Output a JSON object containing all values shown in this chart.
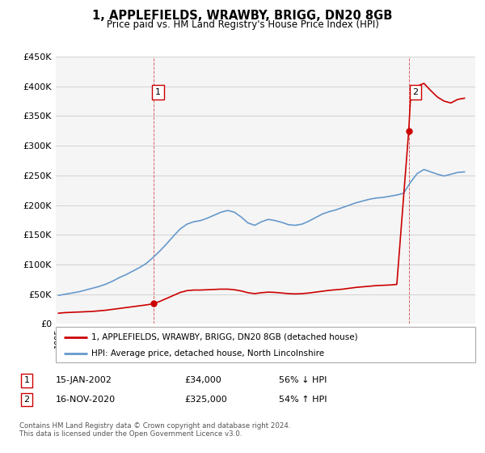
{
  "title": "1, APPLEFIELDS, WRAWBY, BRIGG, DN20 8GB",
  "subtitle": "Price paid vs. HM Land Registry's House Price Index (HPI)",
  "legend_line1": "1, APPLEFIELDS, WRAWBY, BRIGG, DN20 8GB (detached house)",
  "legend_line2": "HPI: Average price, detached house, North Lincolnshire",
  "annotation1_label": "1",
  "annotation1_date": "15-JAN-2002",
  "annotation1_price": "£34,000",
  "annotation1_hpi": "56% ↓ HPI",
  "annotation2_label": "2",
  "annotation2_date": "16-NOV-2020",
  "annotation2_price": "£325,000",
  "annotation2_hpi": "54% ↑ HPI",
  "footnote": "Contains HM Land Registry data © Crown copyright and database right 2024.\nThis data is licensed under the Open Government Licence v3.0.",
  "red_color": "#cc0000",
  "blue_color": "#6699cc",
  "background_color": "#f5f5f5",
  "ylim": [
    0,
    450000
  ],
  "yticks": [
    0,
    50000,
    100000,
    150000,
    200000,
    250000,
    300000,
    350000,
    400000,
    450000
  ],
  "ytick_labels": [
    "£0",
    "£50K",
    "£100K",
    "£150K",
    "£200K",
    "£250K",
    "£300K",
    "£350K",
    "£400K",
    "£450K"
  ],
  "xlim_start": 1994.8,
  "xlim_end": 2025.8,
  "point1_x": 2002.04,
  "point1_y": 34000,
  "point2_x": 2020.88,
  "point2_y": 325000,
  "hpi_years": [
    1995.0,
    1995.5,
    1996.0,
    1996.5,
    1997.0,
    1997.5,
    1998.0,
    1998.5,
    1999.0,
    1999.5,
    2000.0,
    2000.5,
    2001.0,
    2001.5,
    2002.0,
    2002.5,
    2003.0,
    2003.5,
    2004.0,
    2004.5,
    2005.0,
    2005.5,
    2006.0,
    2006.5,
    2007.0,
    2007.5,
    2008.0,
    2008.5,
    2009.0,
    2009.5,
    2010.0,
    2010.5,
    2011.0,
    2011.5,
    2012.0,
    2012.5,
    2013.0,
    2013.5,
    2014.0,
    2014.5,
    2015.0,
    2015.5,
    2016.0,
    2016.5,
    2017.0,
    2017.5,
    2018.0,
    2018.5,
    2019.0,
    2019.5,
    2020.0,
    2020.5,
    2021.0,
    2021.5,
    2022.0,
    2022.5,
    2023.0,
    2023.5,
    2024.0,
    2024.5,
    2025.0
  ],
  "hpi_values": [
    48000,
    50000,
    52000,
    54000,
    57000,
    60000,
    63000,
    67000,
    72000,
    78000,
    83000,
    89000,
    95000,
    102000,
    112000,
    123000,
    135000,
    148000,
    160000,
    168000,
    172000,
    174000,
    178000,
    183000,
    188000,
    191000,
    188000,
    180000,
    170000,
    166000,
    172000,
    176000,
    174000,
    171000,
    167000,
    166000,
    168000,
    173000,
    179000,
    185000,
    189000,
    192000,
    196000,
    200000,
    204000,
    207000,
    210000,
    212000,
    213000,
    215000,
    217000,
    220000,
    238000,
    253000,
    260000,
    256000,
    252000,
    249000,
    252000,
    255000,
    256000
  ],
  "red_years": [
    1995.0,
    1995.5,
    1996.0,
    1996.5,
    1997.0,
    1997.5,
    1998.0,
    1998.5,
    1999.0,
    1999.5,
    2000.0,
    2000.5,
    2001.0,
    2001.5,
    2002.04,
    2002.5,
    2003.0,
    2003.5,
    2004.0,
    2004.5,
    2005.0,
    2005.5,
    2006.0,
    2006.5,
    2007.0,
    2007.5,
    2008.0,
    2008.5,
    2009.0,
    2009.5,
    2010.0,
    2010.5,
    2011.0,
    2011.5,
    2012.0,
    2012.5,
    2013.0,
    2013.5,
    2014.0,
    2014.5,
    2015.0,
    2015.5,
    2016.0,
    2016.5,
    2017.0,
    2017.5,
    2018.0,
    2018.5,
    2019.0,
    2019.5,
    2020.0,
    2020.88,
    2021.0,
    2021.5,
    2022.0,
    2022.5,
    2023.0,
    2023.5,
    2024.0,
    2024.5,
    2025.0
  ],
  "red_values": [
    18000,
    19000,
    19500,
    20000,
    20500,
    21000,
    22000,
    23000,
    24500,
    26000,
    27500,
    29000,
    30500,
    32000,
    34000,
    38000,
    43000,
    48000,
    53000,
    56000,
    57000,
    57000,
    57500,
    58000,
    58500,
    58500,
    57500,
    55500,
    52500,
    51000,
    52500,
    53500,
    53000,
    52000,
    51000,
    50500,
    51000,
    52000,
    53500,
    55000,
    56500,
    57500,
    58500,
    60000,
    61500,
    62500,
    63500,
    64500,
    65000,
    65500,
    66500,
    325000,
    375000,
    400000,
    405000,
    393000,
    382000,
    375000,
    372000,
    378000,
    380000
  ]
}
